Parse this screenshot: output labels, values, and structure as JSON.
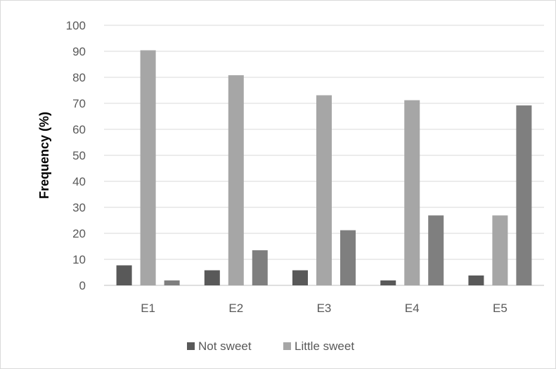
{
  "chart_data": {
    "type": "bar",
    "title": "",
    "xlabel": "",
    "ylabel": "Frequency (%)",
    "ylim": [
      0,
      100
    ],
    "yticks": [
      0,
      10,
      20,
      30,
      40,
      50,
      60,
      70,
      80,
      90,
      100
    ],
    "categories": [
      "E1",
      "E2",
      "E3",
      "E4",
      "E5"
    ],
    "grid": "horizontal",
    "legend_position": "bottom",
    "series": [
      {
        "name": "Not sweet",
        "color": "#595959",
        "values": [
          7.7,
          5.8,
          5.8,
          1.9,
          3.8
        ]
      },
      {
        "name": "Little sweet",
        "color": "#a6a6a6",
        "values": [
          90.4,
          80.8,
          73.1,
          71.2,
          26.9
        ]
      },
      {
        "name": "",
        "color": "#7f7f7f",
        "values": [
          1.9,
          13.5,
          21.2,
          26.9,
          69.2
        ]
      }
    ]
  }
}
